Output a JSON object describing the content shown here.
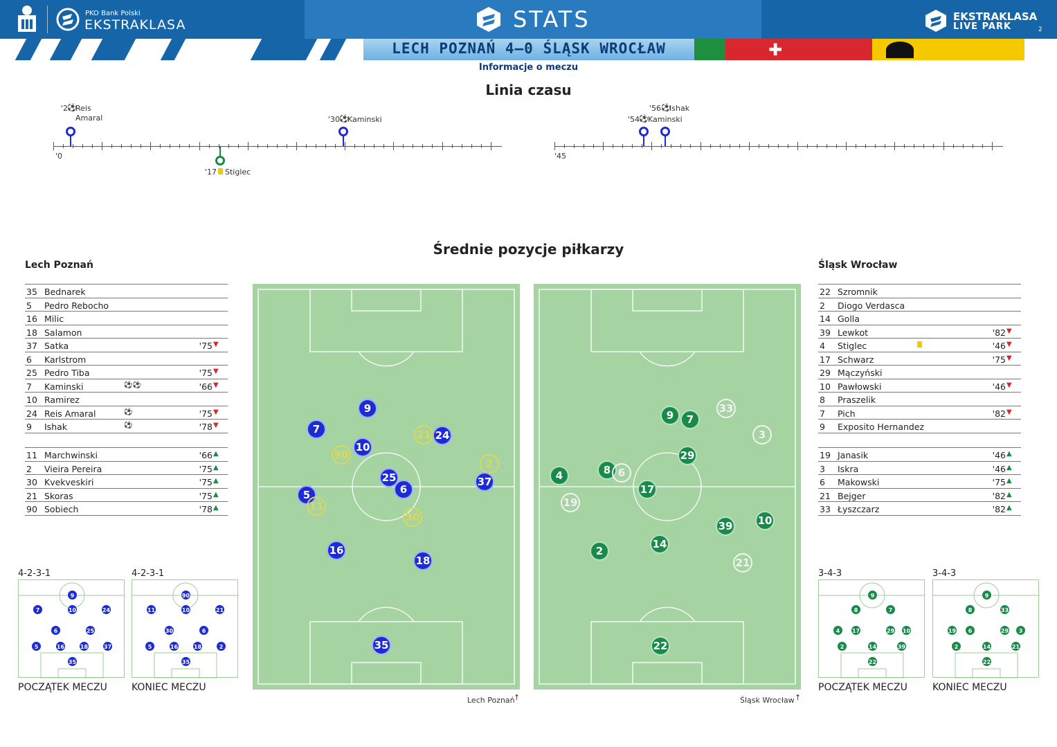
{
  "header": {
    "league_top": "PKO Bank Polski",
    "league": "EKSTRAKLASA",
    "stats": "STATS",
    "brand_top": "EKSTRAKLASA",
    "brand_bottom": "LIVE PARK",
    "page_no": "2"
  },
  "match": {
    "title": "LECH POZNAŃ 4–0 ŚLĄSK WROCŁAW",
    "subtitle": "Informacje o meczu"
  },
  "timeline": {
    "title": "Linia czasu",
    "first_half_start": "'0",
    "second_half_start": "'45",
    "events": [
      {
        "minute": "'2",
        "icon": "ball-icon",
        "player": "Reis Amaral",
        "team": "home"
      },
      {
        "minute": "'17",
        "icon": "yellow-card-icon",
        "player": "Stiglec",
        "team": "away"
      },
      {
        "minute": "'30",
        "icon": "ball-icon",
        "player": "Kaminski",
        "team": "home"
      },
      {
        "minute": "'54",
        "icon": "ball-icon",
        "player": "Kaminski",
        "team": "home"
      },
      {
        "minute": "'56",
        "icon": "ball-icon",
        "player": "Ishak",
        "team": "home"
      }
    ]
  },
  "positions_title": "Średnie pozycje piłkarzy",
  "home": {
    "name": "Lech Poznań",
    "color": "#1d2bd3",
    "starters": [
      {
        "no": "35",
        "name": "Bednarek",
        "icon": "",
        "min": "",
        "arrow": ""
      },
      {
        "no": "5",
        "name": "Pedro Rebocho",
        "icon": "",
        "min": "",
        "arrow": ""
      },
      {
        "no": "16",
        "name": "Milic",
        "icon": "",
        "min": "",
        "arrow": ""
      },
      {
        "no": "18",
        "name": "Salamon",
        "icon": "",
        "min": "",
        "arrow": ""
      },
      {
        "no": "37",
        "name": "Satka",
        "icon": "",
        "min": "'75",
        "arrow": "down"
      },
      {
        "no": "6",
        "name": "Karlstrom",
        "icon": "",
        "min": "",
        "arrow": ""
      },
      {
        "no": "25",
        "name": "Pedro Tiba",
        "icon": "",
        "min": "'75",
        "arrow": "down"
      },
      {
        "no": "7",
        "name": "Kaminski",
        "icon": "⚽⚽",
        "min": "'66",
        "arrow": "down"
      },
      {
        "no": "10",
        "name": "Ramirez",
        "icon": "",
        "min": "",
        "arrow": ""
      },
      {
        "no": "24",
        "name": "Reis Amaral",
        "icon": "⚽",
        "min": "'75",
        "arrow": "down"
      },
      {
        "no": "9",
        "name": "Ishak",
        "icon": "⚽",
        "min": "'78",
        "arrow": "down"
      }
    ],
    "subs": [
      {
        "no": "11",
        "name": "Marchwinski",
        "icon": "",
        "min": "'66",
        "arrow": "up"
      },
      {
        "no": "2",
        "name": "Vieira Pereira",
        "icon": "",
        "min": "'75",
        "arrow": "up"
      },
      {
        "no": "30",
        "name": "Kvekveskiri",
        "icon": "",
        "min": "'75",
        "arrow": "up"
      },
      {
        "no": "21",
        "name": "Skoras",
        "icon": "",
        "min": "'75",
        "arrow": "up"
      },
      {
        "no": "90",
        "name": "Sobiech",
        "icon": "",
        "min": "'78",
        "arrow": "up"
      }
    ],
    "formation_start": "4-2-3-1",
    "formation_end": "4-2-3-1",
    "label_start": "POCZĄTEK MECZU",
    "label_end": "KONIEC MECZU",
    "pitch_label": "Lech Poznań"
  },
  "away": {
    "name": "Śląsk Wrocław",
    "color": "#1a8a4a",
    "starters": [
      {
        "no": "22",
        "name": "Szromnik",
        "icon": "",
        "min": "",
        "arrow": ""
      },
      {
        "no": "2",
        "name": "Diogo Verdasca",
        "icon": "",
        "min": "",
        "arrow": ""
      },
      {
        "no": "14",
        "name": "Golla",
        "icon": "",
        "min": "",
        "arrow": ""
      },
      {
        "no": "39",
        "name": "Lewkot",
        "icon": "",
        "min": "'82",
        "arrow": "down"
      },
      {
        "no": "4",
        "name": "Stiglec",
        "icon": "yellow-card",
        "min": "'46",
        "arrow": "down"
      },
      {
        "no": "17",
        "name": "Schwarz",
        "icon": "",
        "min": "'75",
        "arrow": "down"
      },
      {
        "no": "29",
        "name": "Mączyński",
        "icon": "",
        "min": "",
        "arrow": ""
      },
      {
        "no": "10",
        "name": "Pawłowski",
        "icon": "",
        "min": "'46",
        "arrow": "down"
      },
      {
        "no": "8",
        "name": "Praszelik",
        "icon": "",
        "min": "",
        "arrow": ""
      },
      {
        "no": "7",
        "name": "Pich",
        "icon": "",
        "min": "'82",
        "arrow": "down"
      },
      {
        "no": "9",
        "name": "Exposito Hernandez",
        "icon": "",
        "min": "",
        "arrow": ""
      }
    ],
    "subs": [
      {
        "no": "19",
        "name": "Janasik",
        "icon": "",
        "min": "'46",
        "arrow": "up"
      },
      {
        "no": "3",
        "name": "Iskra",
        "icon": "",
        "min": "'46",
        "arrow": "up"
      },
      {
        "no": "6",
        "name": "Makowski",
        "icon": "",
        "min": "'75",
        "arrow": "up"
      },
      {
        "no": "21",
        "name": "Bejger",
        "icon": "",
        "min": "'82",
        "arrow": "up"
      },
      {
        "no": "33",
        "name": "Łyszczarz",
        "icon": "",
        "min": "'82",
        "arrow": "up"
      }
    ],
    "formation_start": "3-4-3",
    "formation_end": "3-4-3",
    "label_start": "POCZĄTEK MECZU",
    "label_end": "KONIEC MECZU",
    "pitch_label": "Śląsk Wrocław"
  }
}
